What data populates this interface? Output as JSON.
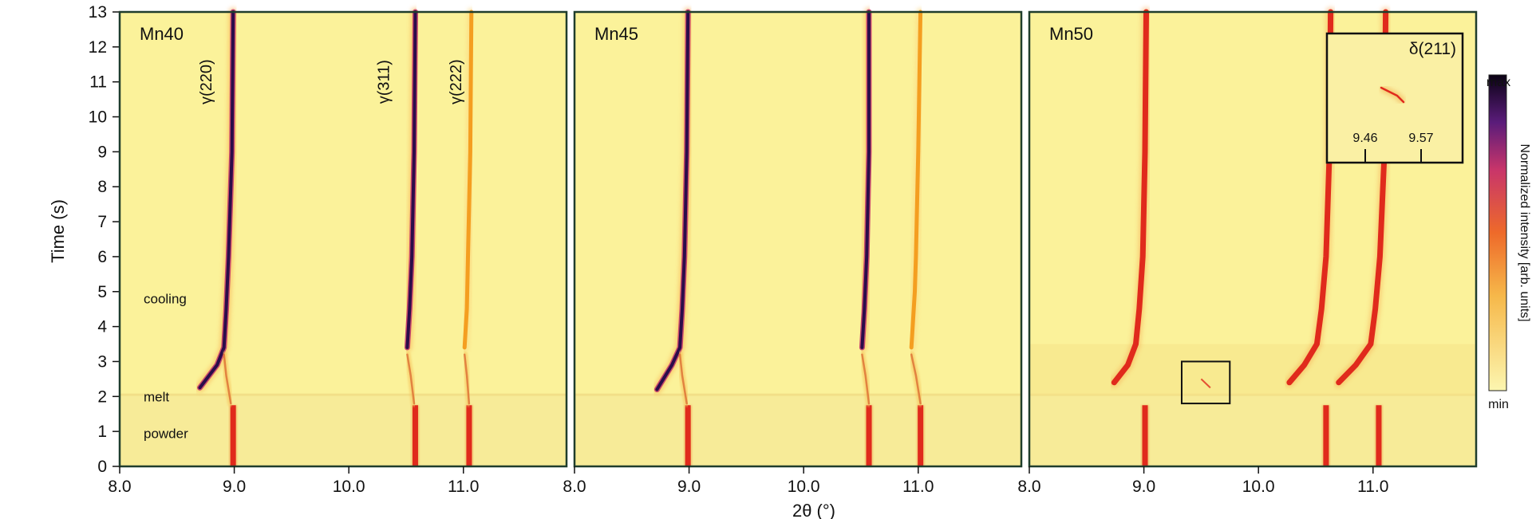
{
  "title": "",
  "y_axis": {
    "label": "Time (s)"
  },
  "x_axis": {
    "label": "2θ (°)"
  },
  "colorbar": {
    "label": "Normalized intensity [arb. units]",
    "max_label": "max",
    "min_label": "min"
  },
  "colors": {
    "background": "#fbf29a",
    "hot": "#e02a1c",
    "peak": "#2b0c4a",
    "mid": "#f39a1a",
    "frame": "#1f3d2c"
  },
  "chart_data": [
    {
      "type": "heatmap",
      "panel_label": "Mn40",
      "xlim": [
        8.0,
        11.9
      ],
      "ylim": [
        0,
        13
      ],
      "x_ticks": [
        "8.0",
        "9.0",
        "10.0",
        "11.0"
      ],
      "y_ticks": [
        "0",
        "1",
        "2",
        "3",
        "4",
        "5",
        "6",
        "7",
        "8",
        "9",
        "10",
        "11",
        "12",
        "13"
      ],
      "phase_labels": [
        {
          "text": "cooling",
          "t": 4.8
        },
        {
          "text": "melt",
          "t": 2.0
        },
        {
          "text": "powder",
          "t": 0.95
        }
      ],
      "peak_labels": [
        {
          "text": "γ(220)",
          "two_theta": 8.8,
          "t": 11.0
        },
        {
          "text": "γ(311)",
          "two_theta": 10.35,
          "t": 11.0
        },
        {
          "text": "γ(222)",
          "two_theta": 10.98,
          "t": 11.0
        }
      ],
      "traces": [
        {
          "level": "strong",
          "points": [
            [
              8.99,
              13
            ],
            [
              8.98,
              9
            ],
            [
              8.95,
              6
            ],
            [
              8.93,
              4.5
            ],
            [
              8.91,
              3.4
            ],
            [
              8.85,
              2.9
            ],
            [
              8.7,
              2.25
            ]
          ]
        },
        {
          "level": "strong",
          "points": [
            [
              10.58,
              13
            ],
            [
              10.57,
              9
            ],
            [
              10.55,
              6
            ],
            [
              10.53,
              4.5
            ],
            [
              10.51,
              3.4
            ]
          ]
        },
        {
          "level": "medium",
          "points": [
            [
              11.07,
              13
            ],
            [
              11.06,
              9
            ],
            [
              11.04,
              6
            ],
            [
              11.03,
              4.5
            ],
            [
              11.01,
              3.4
            ]
          ]
        },
        {
          "level": "faint",
          "points": [
            [
              8.91,
              3.2
            ],
            [
              8.93,
              2.6
            ],
            [
              8.97,
              1.8
            ]
          ]
        },
        {
          "level": "faint",
          "points": [
            [
              10.51,
              3.2
            ],
            [
              10.54,
              2.6
            ],
            [
              10.57,
              1.8
            ]
          ]
        },
        {
          "level": "faint",
          "points": [
            [
              11.01,
              3.2
            ],
            [
              11.03,
              2.6
            ],
            [
              11.05,
              1.8
            ]
          ]
        }
      ],
      "powder_peaks": [
        8.99,
        10.58,
        11.05
      ]
    },
    {
      "type": "heatmap",
      "panel_label": "Mn45",
      "xlim": [
        8.0,
        11.9
      ],
      "ylim": [
        0,
        13
      ],
      "x_ticks": [
        "8.0",
        "9.0",
        "10.0",
        "11.0"
      ],
      "traces": [
        {
          "level": "strong",
          "points": [
            [
              8.99,
              13
            ],
            [
              8.98,
              9
            ],
            [
              8.96,
              6
            ],
            [
              8.94,
              4.5
            ],
            [
              8.92,
              3.4
            ],
            [
              8.85,
              2.9
            ],
            [
              8.72,
              2.2
            ]
          ]
        },
        {
          "level": "strong",
          "points": [
            [
              10.57,
              13
            ],
            [
              10.57,
              9
            ],
            [
              10.55,
              6
            ],
            [
              10.53,
              4.5
            ],
            [
              10.51,
              3.4
            ]
          ]
        },
        {
          "level": "medium",
          "points": [
            [
              11.02,
              13
            ],
            [
              11.0,
              9
            ],
            [
              10.98,
              6
            ],
            [
              10.97,
              5
            ],
            [
              10.94,
              3.4
            ]
          ]
        },
        {
          "level": "faint",
          "points": [
            [
              8.92,
              3.2
            ],
            [
              8.94,
              2.6
            ],
            [
              8.98,
              1.8
            ]
          ]
        },
        {
          "level": "faint",
          "points": [
            [
              10.51,
              3.2
            ],
            [
              10.54,
              2.6
            ],
            [
              10.57,
              1.8
            ]
          ]
        },
        {
          "level": "faint",
          "points": [
            [
              10.94,
              3.2
            ],
            [
              10.98,
              2.6
            ],
            [
              11.02,
              1.8
            ]
          ]
        }
      ],
      "powder_peaks": [
        8.99,
        10.57,
        11.02
      ]
    },
    {
      "type": "heatmap",
      "panel_label": "Mn50",
      "xlim": [
        8.0,
        11.9
      ],
      "ylim": [
        0,
        13
      ],
      "x_ticks": [
        "8.0",
        "9.0",
        "10.0",
        "11.0"
      ],
      "traces": [
        {
          "level": "hot",
          "points": [
            [
              9.02,
              13
            ],
            [
              9.01,
              9
            ],
            [
              8.99,
              6
            ],
            [
              8.96,
              4.5
            ],
            [
              8.93,
              3.5
            ],
            [
              8.86,
              2.9
            ],
            [
              8.74,
              2.4
            ]
          ]
        },
        {
          "level": "hot",
          "points": [
            [
              10.63,
              13
            ],
            [
              10.62,
              9
            ],
            [
              10.59,
              6
            ],
            [
              10.55,
              4.5
            ],
            [
              10.51,
              3.5
            ],
            [
              10.4,
              2.9
            ],
            [
              10.27,
              2.4
            ]
          ]
        },
        {
          "level": "hot",
          "points": [
            [
              11.11,
              13
            ],
            [
              11.1,
              9
            ],
            [
              11.06,
              6
            ],
            [
              11.02,
              4.5
            ],
            [
              10.98,
              3.5
            ],
            [
              10.85,
              2.9
            ],
            [
              10.7,
              2.4
            ]
          ]
        }
      ],
      "powder_peaks": [
        9.01,
        10.59,
        11.05
      ],
      "highlight_box": {
        "x": [
          9.33,
          9.75
        ],
        "t": [
          1.8,
          3.0
        ]
      },
      "inset": {
        "label": "δ(211)",
        "x_ticks": [
          "9.46",
          "9.57"
        ]
      }
    }
  ]
}
